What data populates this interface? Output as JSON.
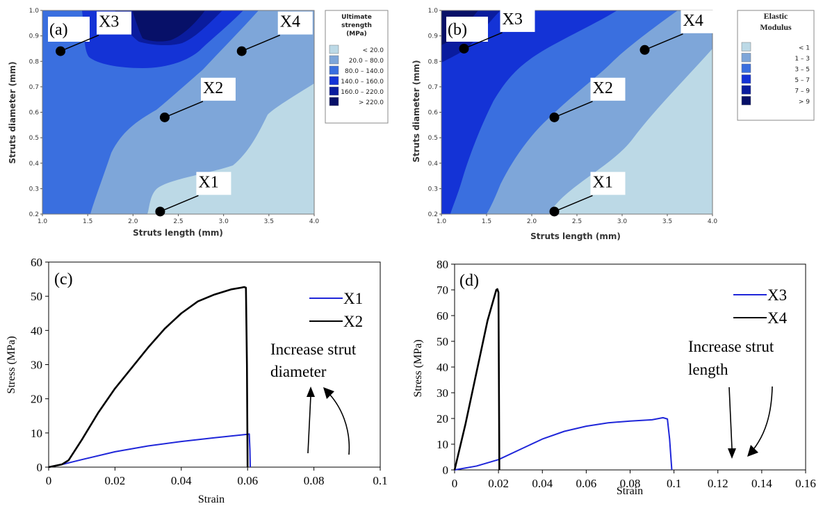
{
  "colors": {
    "level1": "#bcd9e6",
    "level2": "#7ea6d9",
    "level3": "#3a6fdf",
    "level4": "#1433d6",
    "level5": "#0a1c9e",
    "level6": "#071068",
    "x1_line": "#1f26d9",
    "x2_line": "#000000",
    "x3_line": "#1f26d9",
    "x4_line": "#000000"
  },
  "chart_data": [
    {
      "panel": "a",
      "type": "heatmap",
      "panel_label": "(a)",
      "xlabel": "Struts length (mm)",
      "ylabel": "Struts diameter (mm)",
      "xlim": [
        1.0,
        4.0
      ],
      "ylim": [
        0.2,
        1.0
      ],
      "xticks": [
        "1.0",
        "1.5",
        "2.0",
        "2.5",
        "3.0",
        "3.5",
        "4.0"
      ],
      "yticks": [
        "0.2",
        "0.3",
        "0.4",
        "0.5",
        "0.6",
        "0.7",
        "0.8",
        "0.9",
        "1.0"
      ],
      "legend": {
        "title_lines": [
          "Ultimate",
          "strength",
          "(MPa)"
        ],
        "entries": [
          {
            "label": "<   20.0",
            "color": "#bcd9e6"
          },
          {
            "label": "20.0 –   80.0",
            "color": "#7ea6d9"
          },
          {
            "label": "80.0 – 140.0",
            "color": "#3a6fdf"
          },
          {
            "label": "140.0 – 160.0",
            "color": "#1433d6"
          },
          {
            "label": "160.0 – 220.0",
            "color": "#0a1c9e"
          },
          {
            "label": ">  220.0",
            "color": "#071068"
          }
        ],
        "placement": "right"
      },
      "points": [
        {
          "label": "X3",
          "x": 1.2,
          "y": 0.84
        },
        {
          "label": "X4",
          "x": 3.2,
          "y": 0.84
        },
        {
          "label": "X2",
          "x": 2.35,
          "y": 0.58
        },
        {
          "label": "X1",
          "x": 2.3,
          "y": 0.21
        }
      ]
    },
    {
      "panel": "b",
      "type": "heatmap",
      "panel_label": "(b)",
      "xlabel": "Struts length (mm)",
      "ylabel": "Struts diameter (mm)",
      "xlim": [
        1.0,
        4.0
      ],
      "ylim": [
        0.2,
        1.0
      ],
      "xticks": [
        "1.0",
        "1.5",
        "2.0",
        "2.5",
        "3.0",
        "3.5",
        "4.0"
      ],
      "yticks": [
        "0.2",
        "0.3",
        "0.4",
        "0.5",
        "0.6",
        "0.7",
        "0.8",
        "0.9",
        "1.0"
      ],
      "legend": {
        "title_lines": [
          "Elastic",
          "Modulus"
        ],
        "entries": [
          {
            "label": "<  1",
            "color": "#bcd9e6"
          },
          {
            "label": "1  –  3",
            "color": "#7ea6d9"
          },
          {
            "label": "3  –  5",
            "color": "#3a6fdf"
          },
          {
            "label": "5  –  7",
            "color": "#1433d6"
          },
          {
            "label": "7  –  9",
            "color": "#0a1c9e"
          },
          {
            "label": ">  9",
            "color": "#071068"
          }
        ],
        "placement": "right"
      },
      "points": [
        {
          "label": "X3",
          "x": 1.25,
          "y": 0.85
        },
        {
          "label": "X4",
          "x": 3.25,
          "y": 0.845
        },
        {
          "label": "X2",
          "x": 2.25,
          "y": 0.58
        },
        {
          "label": "X1",
          "x": 2.25,
          "y": 0.21
        }
      ]
    },
    {
      "panel": "c",
      "type": "line",
      "panel_label": "(c)",
      "xlabel": "Strain",
      "ylabel": "Stress (MPa)",
      "xlim": [
        0,
        0.1
      ],
      "ylim": [
        0,
        60
      ],
      "xticks": [
        "0",
        "0.02",
        "0.04",
        "0.06",
        "0.08",
        "0.1"
      ],
      "yticks": [
        "0",
        "10",
        "20",
        "30",
        "40",
        "50",
        "60"
      ],
      "annotation": [
        "Increase strut",
        "diameter"
      ],
      "series": [
        {
          "name": "X1",
          "color": "#1f26d9",
          "x": [
            0,
            0.005,
            0.01,
            0.02,
            0.03,
            0.04,
            0.05,
            0.06,
            0.0605,
            0.0607,
            0.0608
          ],
          "y": [
            0,
            1.0,
            2.2,
            4.5,
            6.2,
            7.5,
            8.6,
            9.6,
            9.7,
            5,
            0
          ]
        },
        {
          "name": "X2",
          "color": "#000000",
          "x": [
            0,
            0.004,
            0.006,
            0.01,
            0.015,
            0.02,
            0.025,
            0.03,
            0.035,
            0.04,
            0.045,
            0.05,
            0.055,
            0.058,
            0.059,
            0.0595,
            0.0598,
            0.06
          ],
          "y": [
            0,
            0.8,
            2,
            8,
            16,
            23,
            29,
            35,
            40.5,
            45,
            48.5,
            50.5,
            52,
            52.5,
            52.7,
            52.5,
            30,
            0
          ]
        }
      ]
    },
    {
      "panel": "d",
      "type": "line",
      "panel_label": "(d)",
      "xlabel": "Strain",
      "ylabel": "Stress (MPa)",
      "xlim": [
        0,
        0.16
      ],
      "ylim": [
        0,
        80
      ],
      "xticks": [
        "0",
        "0.02",
        "0.04",
        "0.06",
        "0.08",
        "0.1",
        "0.12",
        "0.14",
        "0.16"
      ],
      "yticks": [
        "0",
        "10",
        "20",
        "30",
        "40",
        "50",
        "60",
        "70",
        "80"
      ],
      "annotation": [
        "Increase strut",
        "length"
      ],
      "series": [
        {
          "name": "X3",
          "color": "#1f26d9",
          "x": [
            0,
            0.01,
            0.02,
            0.03,
            0.04,
            0.05,
            0.06,
            0.07,
            0.08,
            0.09,
            0.095,
            0.097,
            0.098,
            0.099
          ],
          "y": [
            0,
            1.5,
            4,
            8,
            12,
            15,
            17,
            18.3,
            19,
            19.5,
            20.3,
            19.8,
            12,
            0
          ]
        },
        {
          "name": "X4",
          "color": "#000000",
          "x": [
            0,
            0.005,
            0.01,
            0.015,
            0.018,
            0.019,
            0.0195,
            0.02,
            0.0202,
            0.0204
          ],
          "y": [
            0,
            18,
            38,
            58,
            67,
            70,
            70.3,
            69,
            35,
            0
          ]
        }
      ]
    }
  ]
}
